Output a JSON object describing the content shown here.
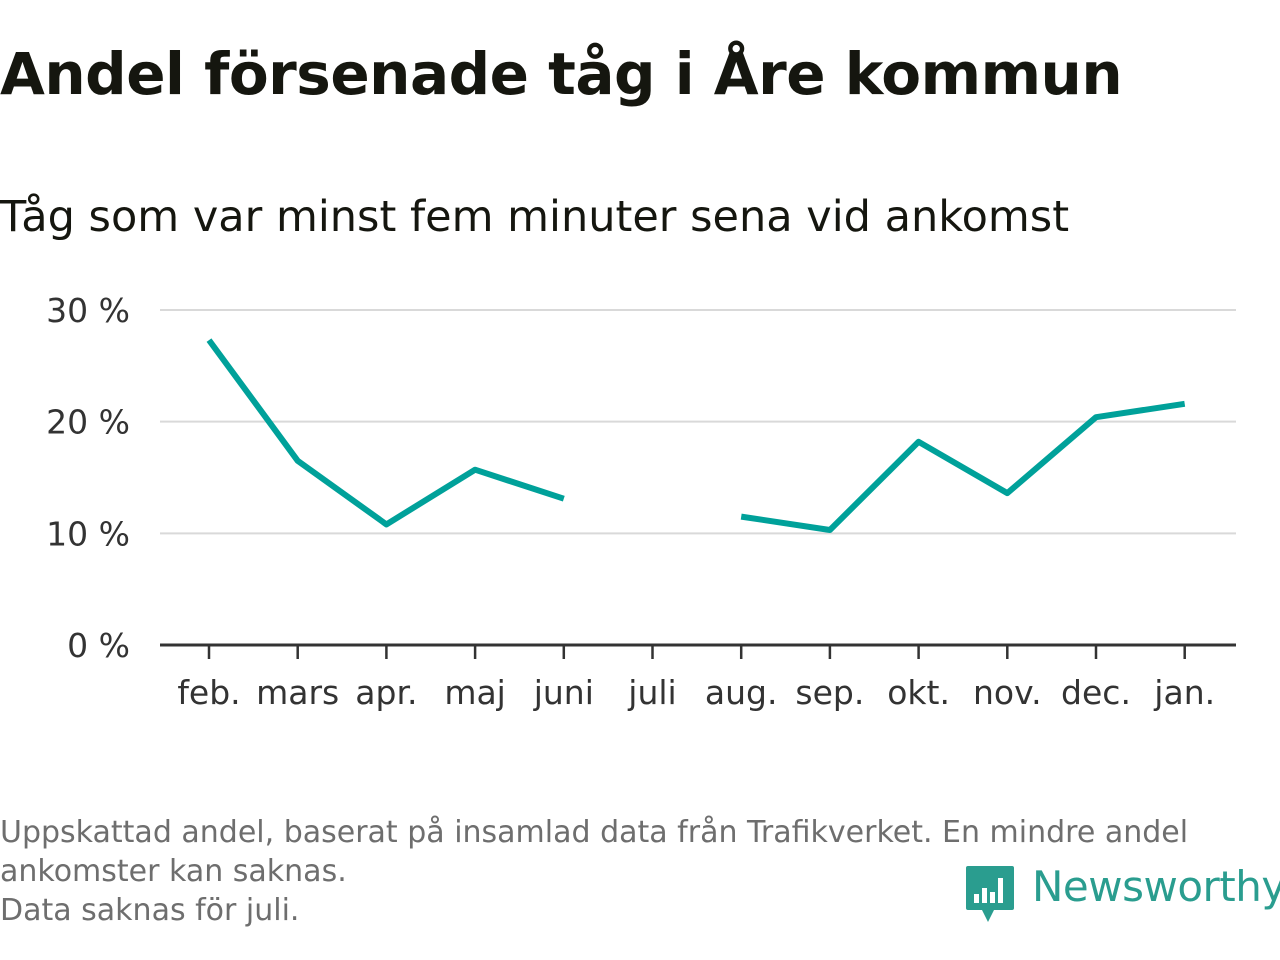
{
  "title": "Andel försenade tåg i Åre kommun",
  "subtitle": "Tåg som var minst fem minuter sena vid ankomst",
  "notes": [
    "Uppskattad andel, baserat på insamlad data från Trafikverket. En mindre andel",
    "ankomster kan saknas.",
    "Data saknas för juli."
  ],
  "brand": {
    "name": "Newsworthy",
    "color": "#2a9d8f"
  },
  "chart_data": {
    "type": "line",
    "categories": [
      "feb.",
      "mars",
      "apr.",
      "maj",
      "juni",
      "juli",
      "aug.",
      "sep.",
      "okt.",
      "nov.",
      "dec.",
      "jan."
    ],
    "series": [
      {
        "values": [
          27.3,
          16.5,
          10.8,
          15.7,
          13.1,
          null,
          11.5,
          10.3,
          18.2,
          13.6,
          20.4,
          21.6
        ],
        "color": "#00a19a"
      }
    ],
    "ylim": [
      0,
      30
    ],
    "yticks": [
      0,
      10,
      20,
      30
    ],
    "ytick_labels": [
      "0 %",
      "10 %",
      "20 %",
      "30 %"
    ],
    "grid": true
  }
}
